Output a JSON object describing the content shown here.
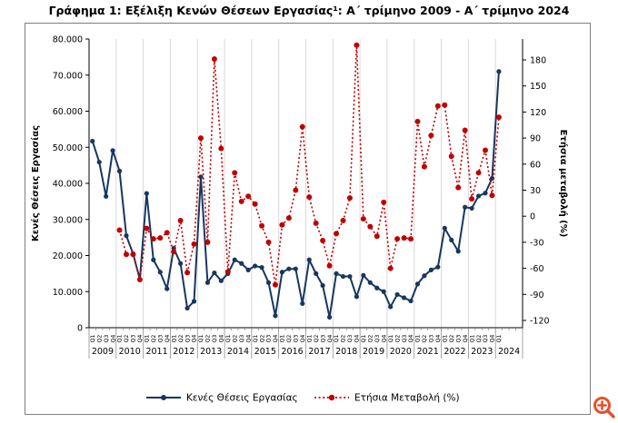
{
  "page": {
    "background": "#ffffff"
  },
  "icons": {
    "zoom_button": "zoom-in-magnifier",
    "zoom_color": "#E8502B"
  },
  "chart_data": {
    "type": "line",
    "title": "Γράφημα 1: Εξέλιξη Κενών Θέσεων Εργασίας¹: Α΄ τρίμηνο 2009 - Α΄ τρίμηνο 2024",
    "grid": "vertical-year-lines",
    "legend_position": "bottom",
    "left_axis": {
      "label": "Κενές Θέσεις Εργασίας",
      "min": 0,
      "max": 80000,
      "tick_step": 10000,
      "tick_labels": [
        "0",
        "10.000",
        "20.000",
        "30.000",
        "40.000",
        "50.000",
        "60.000",
        "70.000",
        "80.000"
      ]
    },
    "right_axis": {
      "label": "Ετήσια μεταβολή (%)",
      "min": -120,
      "max": 180,
      "tick_step": 30,
      "tick_labels": [
        "-120",
        "-90",
        "-60",
        "-30",
        "0",
        "30",
        "60",
        "90",
        "120",
        "150",
        "180"
      ]
    },
    "years": [
      "2009",
      "2010",
      "2011",
      "2012",
      "2013",
      "2014",
      "2015",
      "2016",
      "2017",
      "2018",
      "2019",
      "2020",
      "2021",
      "2022",
      "2023",
      "2024"
    ],
    "quarters_per_year": [
      4,
      4,
      4,
      4,
      4,
      4,
      4,
      4,
      4,
      4,
      4,
      4,
      4,
      4,
      4,
      1
    ],
    "quarter_prefix": "Q",
    "series": [
      {
        "name": "Κενές Θέσεις Εργασίας",
        "axis": "left",
        "color": "#17375E",
        "line_style": "solid",
        "marker": "circle",
        "values": [
          51700,
          45900,
          36400,
          49100,
          43400,
          25500,
          20500,
          13400,
          37200,
          18800,
          15400,
          10800,
          22000,
          17800,
          5400,
          7300,
          41800,
          12500,
          15200,
          13000,
          15000,
          18800,
          17800,
          16000,
          17100,
          16700,
          12500,
          3300,
          15400,
          16300,
          16300,
          6700,
          18800,
          15000,
          11700,
          2900,
          15000,
          14200,
          14200,
          8600,
          14500,
          12500,
          11000,
          10000,
          5800,
          9200,
          8300,
          7400,
          12100,
          14400,
          16000,
          16800,
          27600,
          24300,
          21200,
          33400,
          33100,
          36500,
          37300,
          41400,
          71000
        ]
      },
      {
        "name": "Ετήσια Μεταβολή  (%)",
        "axis": "right",
        "color": "#C00000",
        "line_style": "dotted",
        "marker": "circle",
        "values": [
          null,
          null,
          null,
          null,
          -16,
          -44,
          -44,
          -73,
          -14,
          -26,
          -25,
          -19,
          -41,
          -5,
          -65,
          -32,
          90,
          -30,
          181,
          78,
          -64,
          50,
          17,
          23,
          14,
          -11,
          -30,
          -79,
          -10,
          -2,
          30,
          103,
          22,
          -8,
          -28,
          -57,
          -20,
          -5,
          21,
          197,
          -3,
          -12,
          -23,
          16,
          -60,
          -26,
          -25,
          -26,
          109,
          57,
          93,
          127,
          128,
          69,
          33,
          99,
          20,
          50,
          76,
          24,
          114
        ]
      }
    ]
  }
}
